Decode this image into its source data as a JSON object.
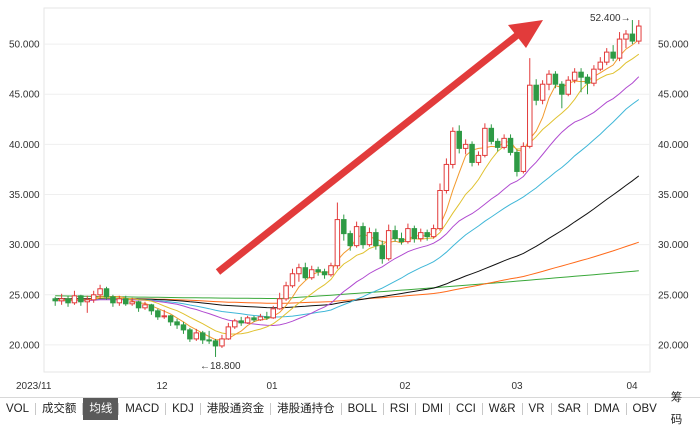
{
  "chart_data": {
    "type": "candlestick",
    "y_ticks": [
      "50.000",
      "45.000",
      "40.000",
      "35.000",
      "30.000",
      "25.000",
      "20.000"
    ],
    "ylim": [
      17.3,
      53.6
    ],
    "x_ticks": [
      "2023/11",
      "12",
      "01",
      "02",
      "03",
      "04"
    ],
    "high_label": "52.400",
    "low_label": "18.800",
    "colors": {
      "up": "#e23b3b",
      "down": "#2e9a45",
      "ma5": "#f29a2e",
      "ma10": "#e0c230",
      "ma20": "#b04ad0",
      "ma30": "#3fb7d8",
      "ma60": "#111111",
      "ma120": "#ff6a1a",
      "ma250": "#3aa83a"
    },
    "ohlc": [
      [
        24.6,
        24.4,
        24.8,
        23.9
      ],
      [
        24.4,
        24.6,
        25.1,
        24.0
      ],
      [
        24.6,
        24.2,
        24.9,
        23.8
      ],
      [
        24.2,
        24.9,
        25.4,
        24.0
      ],
      [
        24.9,
        24.3,
        25.0,
        23.9
      ],
      [
        24.3,
        24.5,
        24.9,
        23.2
      ],
      [
        24.5,
        25.0,
        25.4,
        24.2
      ],
      [
        25.0,
        25.6,
        26.0,
        24.6
      ],
      [
        25.6,
        24.8,
        25.8,
        24.5
      ],
      [
        24.8,
        24.2,
        25.0,
        23.8
      ],
      [
        24.2,
        24.6,
        24.9,
        23.9
      ],
      [
        24.6,
        24.1,
        24.9,
        23.9
      ],
      [
        24.1,
        24.3,
        24.7,
        23.9
      ],
      [
        24.3,
        23.7,
        24.4,
        23.3
      ],
      [
        23.7,
        24.0,
        24.3,
        23.5
      ],
      [
        24.0,
        23.4,
        24.1,
        23.0
      ],
      [
        23.4,
        22.8,
        23.6,
        22.5
      ],
      [
        22.8,
        22.9,
        23.5,
        22.6
      ],
      [
        22.9,
        22.3,
        23.0,
        21.9
      ],
      [
        22.3,
        22.0,
        22.6,
        21.6
      ],
      [
        22.0,
        21.5,
        22.3,
        21.1
      ],
      [
        21.5,
        20.6,
        21.7,
        20.3
      ],
      [
        20.6,
        21.2,
        21.6,
        20.4
      ],
      [
        21.2,
        20.5,
        21.4,
        20.1
      ],
      [
        20.5,
        20.4,
        21.4,
        20.1
      ],
      [
        20.4,
        19.9,
        20.6,
        18.8
      ],
      [
        19.9,
        20.6,
        21.0,
        19.7
      ],
      [
        20.6,
        21.8,
        22.2,
        20.5
      ],
      [
        21.8,
        22.4,
        22.6,
        21.6
      ],
      [
        22.4,
        22.2,
        22.8,
        21.9
      ],
      [
        22.2,
        22.7,
        22.9,
        22.1
      ],
      [
        22.7,
        22.5,
        22.9,
        22.3
      ],
      [
        22.5,
        22.8,
        23.1,
        22.4
      ],
      [
        22.8,
        22.7,
        23.3,
        22.5
      ],
      [
        22.7,
        23.6,
        23.9,
        22.6
      ],
      [
        23.6,
        24.6,
        25.2,
        23.5
      ],
      [
        24.6,
        25.9,
        26.3,
        24.4
      ],
      [
        25.9,
        27.1,
        27.6,
        25.7
      ],
      [
        27.1,
        27.7,
        28.1,
        26.3
      ],
      [
        27.7,
        26.7,
        28.2,
        26.5
      ],
      [
        26.7,
        27.5,
        27.9,
        26.5
      ],
      [
        27.5,
        27.3,
        27.8,
        26.9
      ],
      [
        27.3,
        27.0,
        27.6,
        26.6
      ],
      [
        27.0,
        27.9,
        28.2,
        26.8
      ],
      [
        27.9,
        32.5,
        34.2,
        27.6
      ],
      [
        32.5,
        31.1,
        33.0,
        30.4
      ],
      [
        31.1,
        29.9,
        31.4,
        29.4
      ],
      [
        29.9,
        31.8,
        32.3,
        29.7
      ],
      [
        31.8,
        30.0,
        32.2,
        29.6
      ],
      [
        30.0,
        31.2,
        31.7,
        29.8
      ],
      [
        31.2,
        29.9,
        31.6,
        29.5
      ],
      [
        29.9,
        28.6,
        30.4,
        28.1
      ],
      [
        28.6,
        31.4,
        32.0,
        28.4
      ],
      [
        31.4,
        30.6,
        31.9,
        30.3
      ],
      [
        30.6,
        30.3,
        31.2,
        30.0
      ],
      [
        30.3,
        31.6,
        32.1,
        30.1
      ],
      [
        31.6,
        30.6,
        31.9,
        30.2
      ],
      [
        30.6,
        31.2,
        31.6,
        30.3
      ],
      [
        31.2,
        30.8,
        31.5,
        30.4
      ],
      [
        30.8,
        31.6,
        32.0,
        30.6
      ],
      [
        31.6,
        35.4,
        36.1,
        31.4
      ],
      [
        35.4,
        38.0,
        38.6,
        35.1
      ],
      [
        38.0,
        41.3,
        41.7,
        37.6
      ],
      [
        41.3,
        39.6,
        41.9,
        39.1
      ],
      [
        39.6,
        40.0,
        40.5,
        39.0
      ],
      [
        40.0,
        38.2,
        40.3,
        37.8
      ],
      [
        38.2,
        38.9,
        39.3,
        37.9
      ],
      [
        38.9,
        41.6,
        42.1,
        38.7
      ],
      [
        41.6,
        40.3,
        42.0,
        40.0
      ],
      [
        40.3,
        39.7,
        40.6,
        39.3
      ],
      [
        39.7,
        40.6,
        41.0,
        39.5
      ],
      [
        40.6,
        39.2,
        41.0,
        38.9
      ],
      [
        39.2,
        37.3,
        39.5,
        36.8
      ],
      [
        37.3,
        39.8,
        40.2,
        37.1
      ],
      [
        39.8,
        45.9,
        48.6,
        39.6
      ],
      [
        45.9,
        44.4,
        46.5,
        43.9
      ],
      [
        44.4,
        46.0,
        46.4,
        44.0
      ],
      [
        46.0,
        47.0,
        47.4,
        45.4
      ],
      [
        47.0,
        46.0,
        47.3,
        45.6
      ],
      [
        46.0,
        45.0,
        46.3,
        43.6
      ],
      [
        45.0,
        46.4,
        46.8,
        44.8
      ],
      [
        46.4,
        47.2,
        47.6,
        46.1
      ],
      [
        47.2,
        46.7,
        47.6,
        45.2
      ],
      [
        46.7,
        46.1,
        47.0,
        45.0
      ],
      [
        46.1,
        47.5,
        47.9,
        45.8
      ],
      [
        47.5,
        48.2,
        48.7,
        47.3
      ],
      [
        48.2,
        49.2,
        49.6,
        47.9
      ],
      [
        49.2,
        48.6,
        49.9,
        48.3
      ],
      [
        48.6,
        50.5,
        51.2,
        48.3
      ],
      [
        50.5,
        51.0,
        51.4,
        49.6
      ],
      [
        51.0,
        50.3,
        52.4,
        50.0
      ],
      [
        50.3,
        51.8,
        52.4,
        50.0
      ]
    ]
  },
  "toolbar": {
    "tabs": [
      "VOL",
      "成交额",
      "均线",
      "MACD",
      "KDJ",
      "港股通资金",
      "港股通持仓",
      "BOLL",
      "RSI",
      "DMI",
      "CCI",
      "W&R",
      "VR",
      "SAR",
      "DMA",
      "OBV"
    ],
    "active": "均线",
    "right_label": "筹码"
  }
}
